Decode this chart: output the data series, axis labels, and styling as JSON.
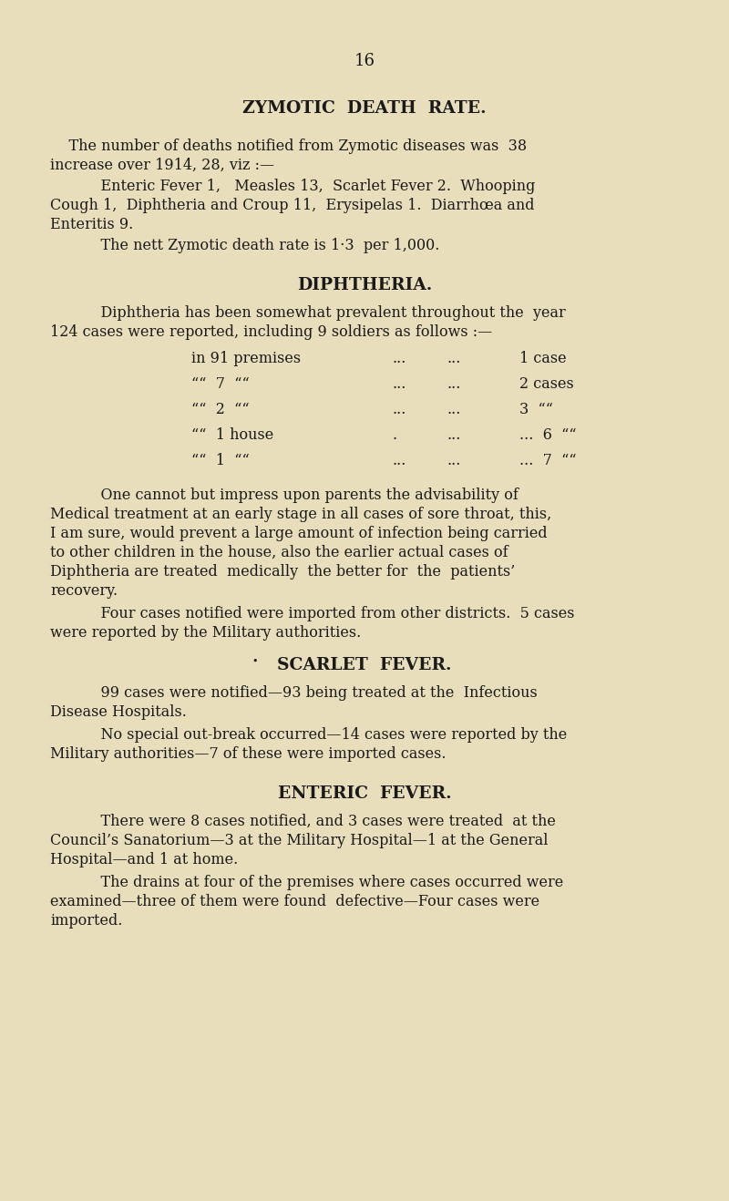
{
  "bg_color": "#e8debb",
  "text_color": "#1a1a1a",
  "page_number": "16",
  "title1": "ZYMOTIC  DEATH  RATE.",
  "para1a": "    The number of deaths notified from Zymotic diseases was  38",
  "para1b": "increase over 1914, 28, viz :—",
  "para2a": "    Enteric Fever 1,   Measles 13,  Scarlet Fever 2.  Whooping",
  "para2b": "Cough 1,  Diphtheria and Croup 11,  Erysipelas 1.  Diarrhœa and",
  "para2c": "Enteritis 9.",
  "para3": "    The nett Zymotic death rate is 1·3  per 1,000.",
  "title2": "DIPHTHERIA.",
  "para4a": "    Diphtheria has been somewhat prevalent throughout the  year",
  "para4b": "124 cases were reported, including 9 soldiers as follows :—",
  "t1c1": "in 91 premises",
  "t1c2": "...",
  "t1c3": "...",
  "t1c4": "1 case",
  "t2c1": "““  7  ““",
  "t2c2": "...",
  "t2c3": "...",
  "t2c4": "2 cases",
  "t3c1": "““  2  ““",
  "t3c2": "...",
  "t3c3": "...",
  "t3c4": "3  ““",
  "t4c1": "““  1 house",
  "t4c2": ".",
  "t4c3": "...",
  "t4c4": "...  6  ““",
  "t5c1": "““  1  ““",
  "t5c2": "...",
  "t5c3": "...",
  "t5c4": "...  7  ““",
  "para5a": "    One cannot but impress upon parents the advisability of",
  "para5b": "Medical treatment at an early stage in all cases of sore throat, this,",
  "para5c": "I am sure, would prevent a large amount of infection being carried",
  "para5d": "to other children in the house, also the earlier actual cases of",
  "para5e": "Diphtheria are treated  medically  the better for  the  patients’",
  "para5f": "recovery.",
  "para6a": "    Four cases notified were imported from other districts.  5 cases",
  "para6b": "were reported by the Military authorities.",
  "bullet": "•",
  "title3": "SCARLET  FEVER.",
  "para7a": "    99 cases were notified—93 being treated at the  Infectious",
  "para7b": "Disease Hospitals.",
  "para8a": "    No special out-break occurred—14 cases were reported by the",
  "para8b": "Military authorities—7 of these were imported cases.",
  "title4": "ENTERIC  FEVER.",
  "para9a": "    There were 8 cases notified, and 3 cases were treated  at the",
  "para9b": "Council’s Sanatorium—3 at the Military Hospital—1 at the General",
  "para9c": "Hospital—and 1 at home.",
  "para10a": "    The drains at four of the premises where cases occurred were",
  "para10b": "examined—three of them were found  defective—Four cases were",
  "para10c": "imported."
}
